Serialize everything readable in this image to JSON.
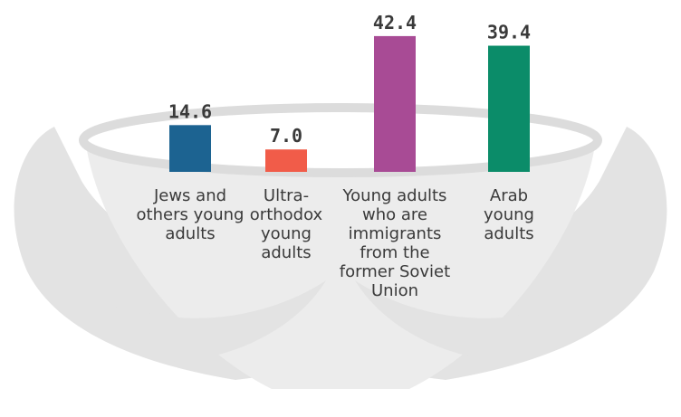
{
  "chart_data": {
    "type": "bar",
    "categories": [
      "Jews and others young adults",
      "Ultra-orthodox young adults",
      "Young adults who are immigrants from the former Soviet Union",
      "Arab young adults"
    ],
    "values": [
      14.6,
      7.0,
      42.4,
      39.4
    ],
    "value_labels": [
      "14.6",
      "7.0",
      "42.4",
      "39.4"
    ],
    "colors": [
      "#1c6391",
      "#f15c49",
      "#a84b95",
      "#0b8c69"
    ]
  }
}
